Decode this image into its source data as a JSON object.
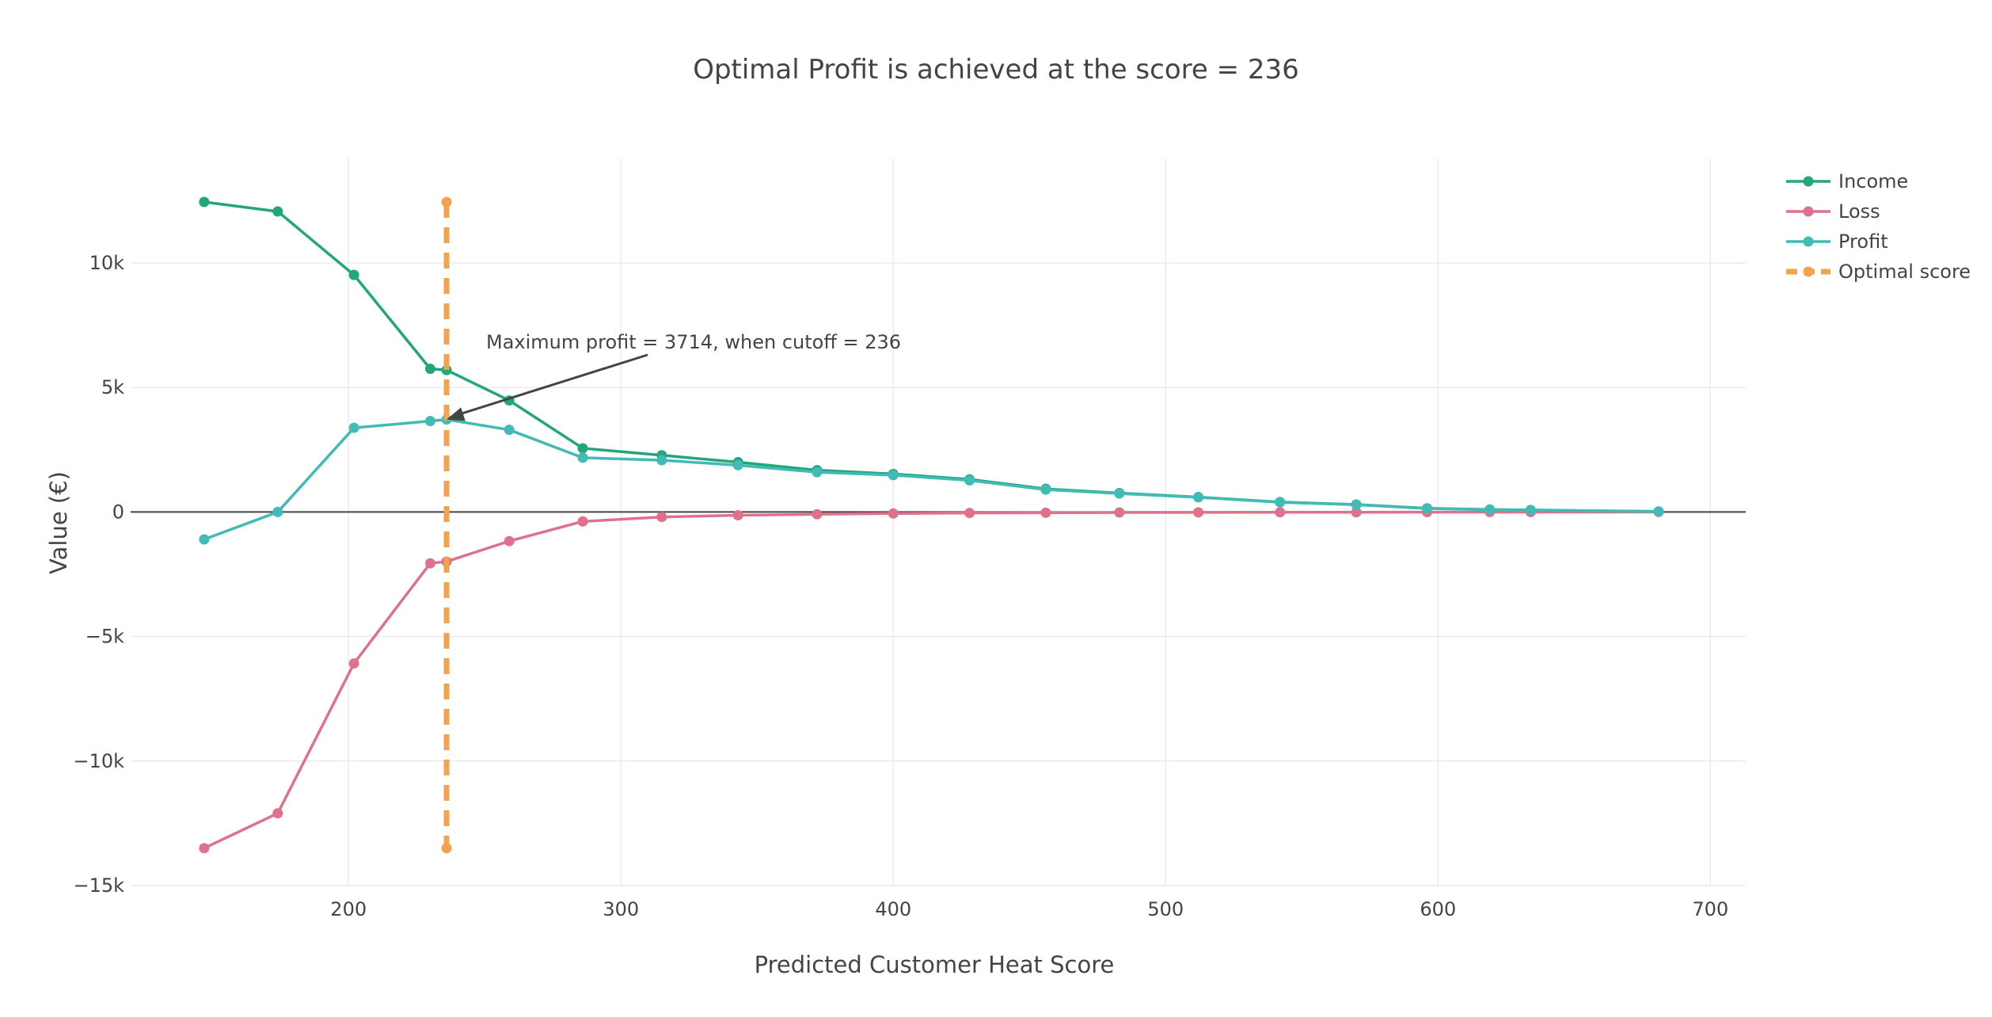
{
  "chart_data": {
    "type": "line",
    "title": "Optimal Profit is achieved at the score = 236",
    "xlabel": "Predicted Customer Heat Score",
    "ylabel": "Value (€)",
    "xlim": [
      120,
      713
    ],
    "ylim": [
      -15000,
      14200
    ],
    "xticks": [
      200,
      300,
      400,
      500,
      600,
      700
    ],
    "xtick_labels": [
      "200",
      "300",
      "400",
      "500",
      "600",
      "700"
    ],
    "yticks": [
      -15000,
      -10000,
      -5000,
      0,
      5000,
      10000
    ],
    "ytick_labels": [
      "−15k",
      "−10k",
      "−5k",
      "0",
      "5k",
      "10k"
    ],
    "grid": true,
    "legend_position": "top-right",
    "series": [
      {
        "name": "Income",
        "color": "#22a67a",
        "x": [
          147,
          174,
          202,
          230,
          236,
          259,
          286,
          315,
          343,
          372,
          400,
          428,
          456,
          483,
          512,
          542,
          570,
          596,
          619,
          634,
          681
        ],
        "y": [
          12450,
          12070,
          9520,
          5750,
          5700,
          4480,
          2560,
          2280,
          2000,
          1680,
          1530,
          1310,
          930,
          760,
          600,
          400,
          300,
          150,
          100,
          80,
          20
        ]
      },
      {
        "name": "Loss",
        "color": "#e0718c",
        "x": [
          147,
          174,
          202,
          230,
          236,
          259,
          286,
          315,
          343,
          372,
          400,
          428,
          456,
          483,
          512,
          542,
          570,
          596,
          619,
          634,
          681
        ],
        "y": [
          -13500,
          -12100,
          -6080,
          -2060,
          -1990,
          -1170,
          -380,
          -200,
          -130,
          -90,
          -60,
          -40,
          -30,
          -20,
          -15,
          -10,
          -10,
          -5,
          -5,
          -5,
          0
        ]
      },
      {
        "name": "Profit",
        "color": "#40bbb5",
        "x": [
          147,
          174,
          202,
          230,
          236,
          259,
          286,
          315,
          343,
          372,
          400,
          428,
          456,
          483,
          512,
          542,
          570,
          596,
          619,
          634,
          681
        ],
        "y": [
          -1100,
          0,
          3380,
          3650,
          3714,
          3300,
          2180,
          2080,
          1880,
          1600,
          1480,
          1270,
          900,
          740,
          590,
          390,
          290,
          140,
          95,
          75,
          20
        ]
      },
      {
        "name": "Optimal score",
        "color": "#f2a34b",
        "dash": true,
        "x": [
          236,
          236
        ],
        "y": [
          12450,
          -13500
        ]
      }
    ],
    "annotation": {
      "text": "Maximum profit = 3714, when cutoff = 236",
      "x": 236,
      "y": 3714
    }
  }
}
